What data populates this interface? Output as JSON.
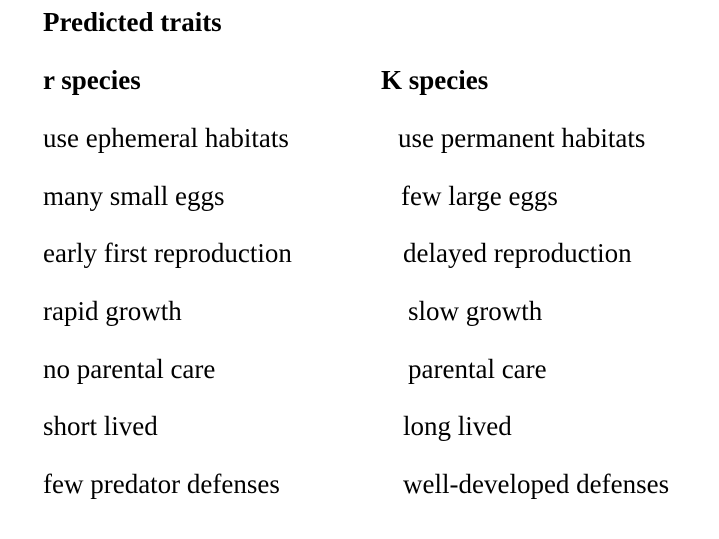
{
  "title": "Predicted traits",
  "columns": {
    "r_header": "r species",
    "k_header": "K species"
  },
  "rows": [
    {
      "r": "use ephemeral habitats",
      "k": "use permanent habitats"
    },
    {
      "r": "many small eggs",
      "k": "few large eggs"
    },
    {
      "r": "early first reproduction",
      "k": "delayed reproduction"
    },
    {
      "r": "rapid growth",
      "k": "slow growth"
    },
    {
      "r": "no parental care",
      "k": "parental care"
    },
    {
      "r": "short lived",
      "k": "long lived"
    },
    {
      "r": "few predator defenses",
      "k": "well-developed defenses"
    }
  ]
}
